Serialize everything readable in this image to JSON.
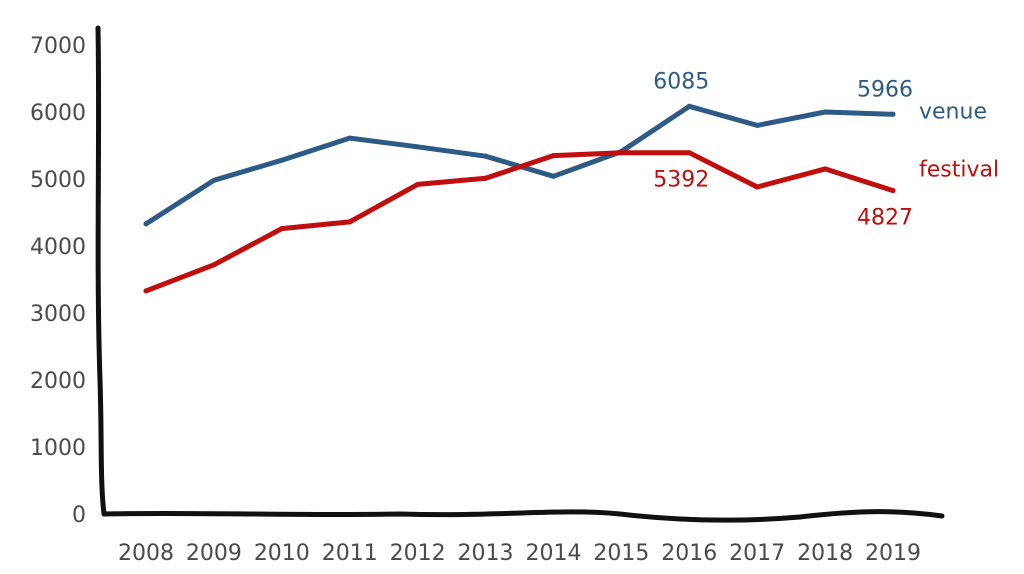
{
  "chart_data": {
    "type": "line",
    "title": "",
    "xlabel": "",
    "ylabel": "",
    "x": [
      "2008",
      "2009",
      "2010",
      "2011",
      "2012",
      "2013",
      "2014",
      "2015",
      "2016",
      "2017",
      "2018",
      "2019"
    ],
    "ylim": [
      0,
      7000
    ],
    "yticks": [
      0,
      1000,
      2000,
      3000,
      4000,
      5000,
      6000,
      7000
    ],
    "grid": false,
    "legend": "inline-right",
    "series": [
      {
        "name": "venue",
        "color": "#2e5a86",
        "values": [
          4330,
          4980,
          5280,
          5610,
          5480,
          5340,
          5040,
          5410,
          6085,
          5800,
          6000,
          5966
        ],
        "annotations": [
          {
            "index": 8,
            "text": "6085",
            "position": "above"
          },
          {
            "index": 11,
            "text": "5966",
            "position": "above"
          }
        ]
      },
      {
        "name": "festival",
        "color": "#c00d0d",
        "values": [
          3330,
          3720,
          4260,
          4360,
          4920,
          5010,
          5350,
          5392,
          5392,
          4880,
          5150,
          4827
        ],
        "annotations": [
          {
            "index": 8,
            "text": "5392",
            "position": "below"
          },
          {
            "index": 11,
            "text": "4827",
            "position": "below"
          }
        ]
      }
    ]
  }
}
